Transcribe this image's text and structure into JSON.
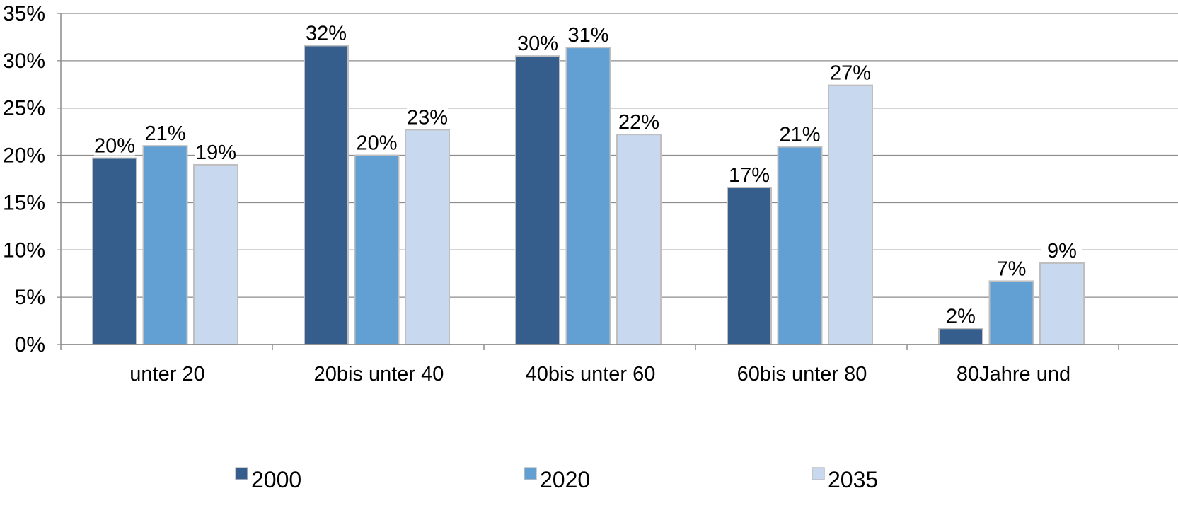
{
  "chart_data": {
    "type": "bar",
    "title": "",
    "xlabel": "",
    "ylabel": "",
    "categories": [
      "unter 20",
      "20bis unter 40",
      "40bis unter 60",
      "60bis unter 80",
      "80Jahre und"
    ],
    "series": [
      {
        "name": "2000",
        "color": "#355E8D",
        "values": [
          0.197,
          0.316,
          0.305,
          0.166,
          0.017
        ],
        "labels": [
          "20%",
          "32%",
          "30%",
          "17%",
          "2%"
        ]
      },
      {
        "name": "2020",
        "color": "#62A0D3",
        "values": [
          0.21,
          0.2,
          0.314,
          0.209,
          0.067
        ],
        "labels": [
          "21%",
          "20%",
          "31%",
          "21%",
          "7%"
        ]
      },
      {
        "name": "2035",
        "color": "#C7D8EF",
        "values": [
          0.19,
          0.227,
          0.222,
          0.274,
          0.086
        ],
        "labels": [
          "19%",
          "23%",
          "22%",
          "27%",
          "9%"
        ]
      }
    ],
    "ylim": [
      0,
      0.35
    ],
    "yticks": [
      0,
      0.05,
      0.1,
      0.15,
      0.2,
      0.25,
      0.3,
      0.35
    ],
    "ytick_labels": [
      "0%",
      "5%",
      "10%",
      "15%",
      "20%",
      "25%",
      "30%",
      "35%"
    ],
    "grid": true,
    "legend": "bottom",
    "grid_color": "#8C8C8C",
    "axis_color": "#8C8C8C",
    "bar_border_color": "#BFBFBF"
  }
}
